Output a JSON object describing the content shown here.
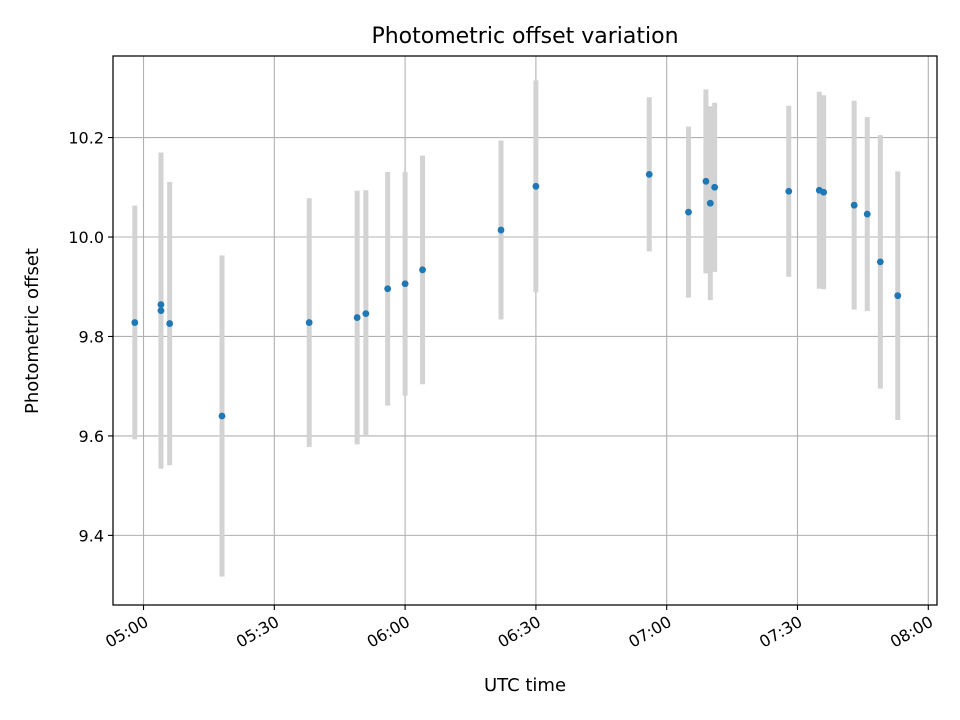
{
  "chart_data": {
    "type": "scatter",
    "title": "Photometric offset variation",
    "xlabel": "UTC time",
    "ylabel": "Photometric offset",
    "x_axis": "time",
    "xlim": [
      "04:53",
      "08:02"
    ],
    "ylim": [
      9.26,
      10.364
    ],
    "x_ticks": [
      "05:00",
      "05:30",
      "06:00",
      "06:30",
      "07:00",
      "07:30",
      "08:00"
    ],
    "y_ticks": [
      9.4,
      9.6,
      9.8,
      10.0,
      10.2
    ],
    "y_tick_labels": [
      "9.4",
      "9.6",
      "9.8",
      "10.0",
      "10.2"
    ],
    "grid": true,
    "colors": {
      "points": "#1f77b4",
      "error_bars": "#d3d3d3",
      "grid": "#b0b0b0"
    },
    "points": [
      {
        "x": "04:58",
        "y": 9.828,
        "err": 0.235
      },
      {
        "x": "05:04",
        "y": 9.852,
        "err": 0.318
      },
      {
        "x": "05:04",
        "y": 9.864,
        "err": 0.295
      },
      {
        "x": "05:06",
        "y": 9.826,
        "err": 0.285
      },
      {
        "x": "05:18",
        "y": 9.64,
        "err": 0.323
      },
      {
        "x": "05:38",
        "y": 9.828,
        "err": 0.25
      },
      {
        "x": "05:49",
        "y": 9.838,
        "err": 0.255
      },
      {
        "x": "05:51",
        "y": 9.846,
        "err": 0.248
      },
      {
        "x": "05:56",
        "y": 9.896,
        "err": 0.235
      },
      {
        "x": "06:00",
        "y": 9.906,
        "err": 0.225
      },
      {
        "x": "06:04",
        "y": 9.934,
        "err": 0.23
      },
      {
        "x": "06:22",
        "y": 10.014,
        "err": 0.18
      },
      {
        "x": "06:30",
        "y": 10.102,
        "err": 0.213
      },
      {
        "x": "06:56",
        "y": 10.126,
        "err": 0.155
      },
      {
        "x": "07:05",
        "y": 10.05,
        "err": 0.172
      },
      {
        "x": "07:09",
        "y": 10.112,
        "err": 0.185
      },
      {
        "x": "07:10",
        "y": 10.068,
        "err": 0.195
      },
      {
        "x": "07:11",
        "y": 10.1,
        "err": 0.17
      },
      {
        "x": "07:28",
        "y": 10.092,
        "err": 0.172
      },
      {
        "x": "07:35",
        "y": 10.094,
        "err": 0.198
      },
      {
        "x": "07:36",
        "y": 10.09,
        "err": 0.195
      },
      {
        "x": "07:43",
        "y": 10.064,
        "err": 0.21
      },
      {
        "x": "07:46",
        "y": 10.046,
        "err": 0.195
      },
      {
        "x": "07:49",
        "y": 9.95,
        "err": 0.255
      },
      {
        "x": "07:53",
        "y": 9.882,
        "err": 0.25
      }
    ]
  }
}
